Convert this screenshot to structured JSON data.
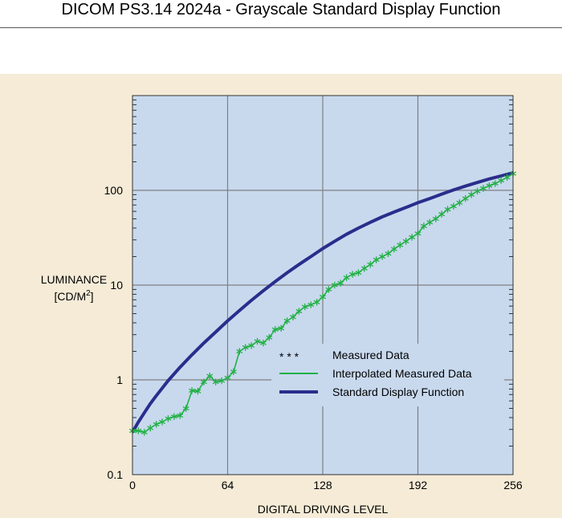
{
  "page": {
    "header": "DICOM PS3.14 2024a - Grayscale Standard Display Function"
  },
  "chart_data": {
    "type": "line",
    "title": "",
    "xlabel": "DIGITAL DRIVING LEVEL",
    "ylabel_line1": "LUMINANCE",
    "ylabel_line2": "[CD/M",
    "ylabel_sup": "2",
    "ylabel_close": "]",
    "xlim": [
      0,
      256
    ],
    "ylim": [
      0.1,
      1000
    ],
    "y_scale": "log",
    "grid": true,
    "legend_position": "center-right",
    "x_ticks": [
      {
        "value": 0,
        "label": "0"
      },
      {
        "value": 64,
        "label": "64"
      },
      {
        "value": 128,
        "label": "128"
      },
      {
        "value": 192,
        "label": "192"
      },
      {
        "value": 256,
        "label": "256"
      }
    ],
    "y_ticks": [
      {
        "value": 0.1,
        "label": "0.1"
      },
      {
        "value": 1,
        "label": "1"
      },
      {
        "value": 10,
        "label": "10"
      },
      {
        "value": 100,
        "label": "100"
      }
    ],
    "colors": {
      "plot_background": "#c8d9ee",
      "grid": "#808080",
      "sdf_line": "#2a2d8c",
      "measured": "#22b045"
    },
    "series": [
      {
        "name": "Standard Display Function",
        "style": "thick-line",
        "color": "#2a2d8c",
        "x": [
          0,
          4,
          8,
          12,
          16,
          24,
          32,
          40,
          48,
          56,
          64,
          72,
          80,
          88,
          96,
          104,
          112,
          120,
          128,
          136,
          144,
          152,
          160,
          168,
          176,
          184,
          192,
          200,
          208,
          216,
          224,
          232,
          240,
          248,
          256
        ],
        "y": [
          0.28,
          0.36,
          0.45,
          0.56,
          0.68,
          0.98,
          1.36,
          1.84,
          2.45,
          3.2,
          4.2,
          5.4,
          6.9,
          8.7,
          10.9,
          13.5,
          16.5,
          20.0,
          24.3,
          29.0,
          34.4,
          40.0,
          46.0,
          52.5,
          59.0,
          66.0,
          74.0,
          82.0,
          91.0,
          101.0,
          111.0,
          121.0,
          132.0,
          142.0,
          153.0
        ]
      },
      {
        "name": "Interpolated Measured Data",
        "style": "thin-line",
        "color": "#22b045",
        "x": [
          0,
          4,
          8,
          12,
          16,
          20,
          24,
          28,
          32,
          36,
          40,
          44,
          48,
          52,
          56,
          60,
          64,
          68,
          72,
          76,
          80,
          84,
          88,
          92,
          96,
          100,
          104,
          108,
          112,
          116,
          120,
          124,
          128,
          132,
          136,
          140,
          144,
          148,
          152,
          156,
          160,
          164,
          168,
          172,
          176,
          180,
          184,
          188,
          192,
          196,
          200,
          204,
          208,
          212,
          216,
          220,
          224,
          228,
          232,
          236,
          240,
          244,
          248,
          252,
          256
        ],
        "y": [
          0.29,
          0.29,
          0.28,
          0.31,
          0.34,
          0.36,
          0.39,
          0.41,
          0.42,
          0.5,
          0.77,
          0.76,
          0.95,
          1.1,
          0.95,
          0.98,
          1.05,
          1.22,
          2.0,
          2.2,
          2.3,
          2.55,
          2.45,
          2.8,
          3.4,
          3.5,
          4.2,
          4.6,
          5.3,
          5.9,
          6.2,
          6.6,
          7.5,
          9.0,
          10.0,
          10.5,
          12.0,
          13.0,
          13.5,
          15.0,
          16.5,
          18.5,
          20.0,
          21.5,
          24.0,
          26.5,
          29.0,
          32.0,
          35.0,
          42.0,
          46.0,
          50.0,
          56.0,
          63.0,
          68.0,
          74.0,
          82.0,
          90.0,
          98.0,
          105.0,
          112.0,
          118.0,
          127.0,
          137.0,
          150.0
        ]
      },
      {
        "name": "Measured Data",
        "style": "asterisk-markers",
        "color": "#22b045",
        "x": [
          0,
          4,
          8,
          12,
          16,
          20,
          24,
          28,
          32,
          36,
          40,
          44,
          48,
          52,
          56,
          60,
          64,
          68,
          72,
          76,
          80,
          84,
          88,
          92,
          96,
          100,
          104,
          108,
          112,
          116,
          120,
          124,
          128,
          132,
          136,
          140,
          144,
          148,
          152,
          156,
          160,
          164,
          168,
          172,
          176,
          180,
          184,
          188,
          192,
          196,
          200,
          204,
          208,
          212,
          216,
          220,
          224,
          228,
          232,
          236,
          240,
          244,
          248,
          252,
          256
        ],
        "y": [
          0.29,
          0.29,
          0.28,
          0.31,
          0.34,
          0.36,
          0.39,
          0.41,
          0.42,
          0.5,
          0.77,
          0.76,
          0.95,
          1.1,
          0.95,
          0.98,
          1.05,
          1.22,
          2.0,
          2.2,
          2.3,
          2.55,
          2.45,
          2.8,
          3.4,
          3.5,
          4.2,
          4.6,
          5.3,
          5.9,
          6.2,
          6.6,
          7.5,
          9.0,
          10.0,
          10.5,
          12.0,
          13.0,
          13.5,
          15.0,
          16.5,
          18.5,
          20.0,
          21.5,
          24.0,
          26.5,
          29.0,
          32.0,
          35.0,
          42.0,
          46.0,
          50.0,
          56.0,
          63.0,
          68.0,
          74.0,
          82.0,
          90.0,
          98.0,
          105.0,
          112.0,
          118.0,
          127.0,
          137.0,
          150.0
        ]
      }
    ],
    "legend": [
      {
        "label": "Measured Data",
        "symbol": "* * *",
        "style": "asterisk-markers"
      },
      {
        "label": "Interpolated Measured Data",
        "style": "thin-line"
      },
      {
        "label": "Standard Display Function",
        "style": "thick-line"
      }
    ]
  }
}
